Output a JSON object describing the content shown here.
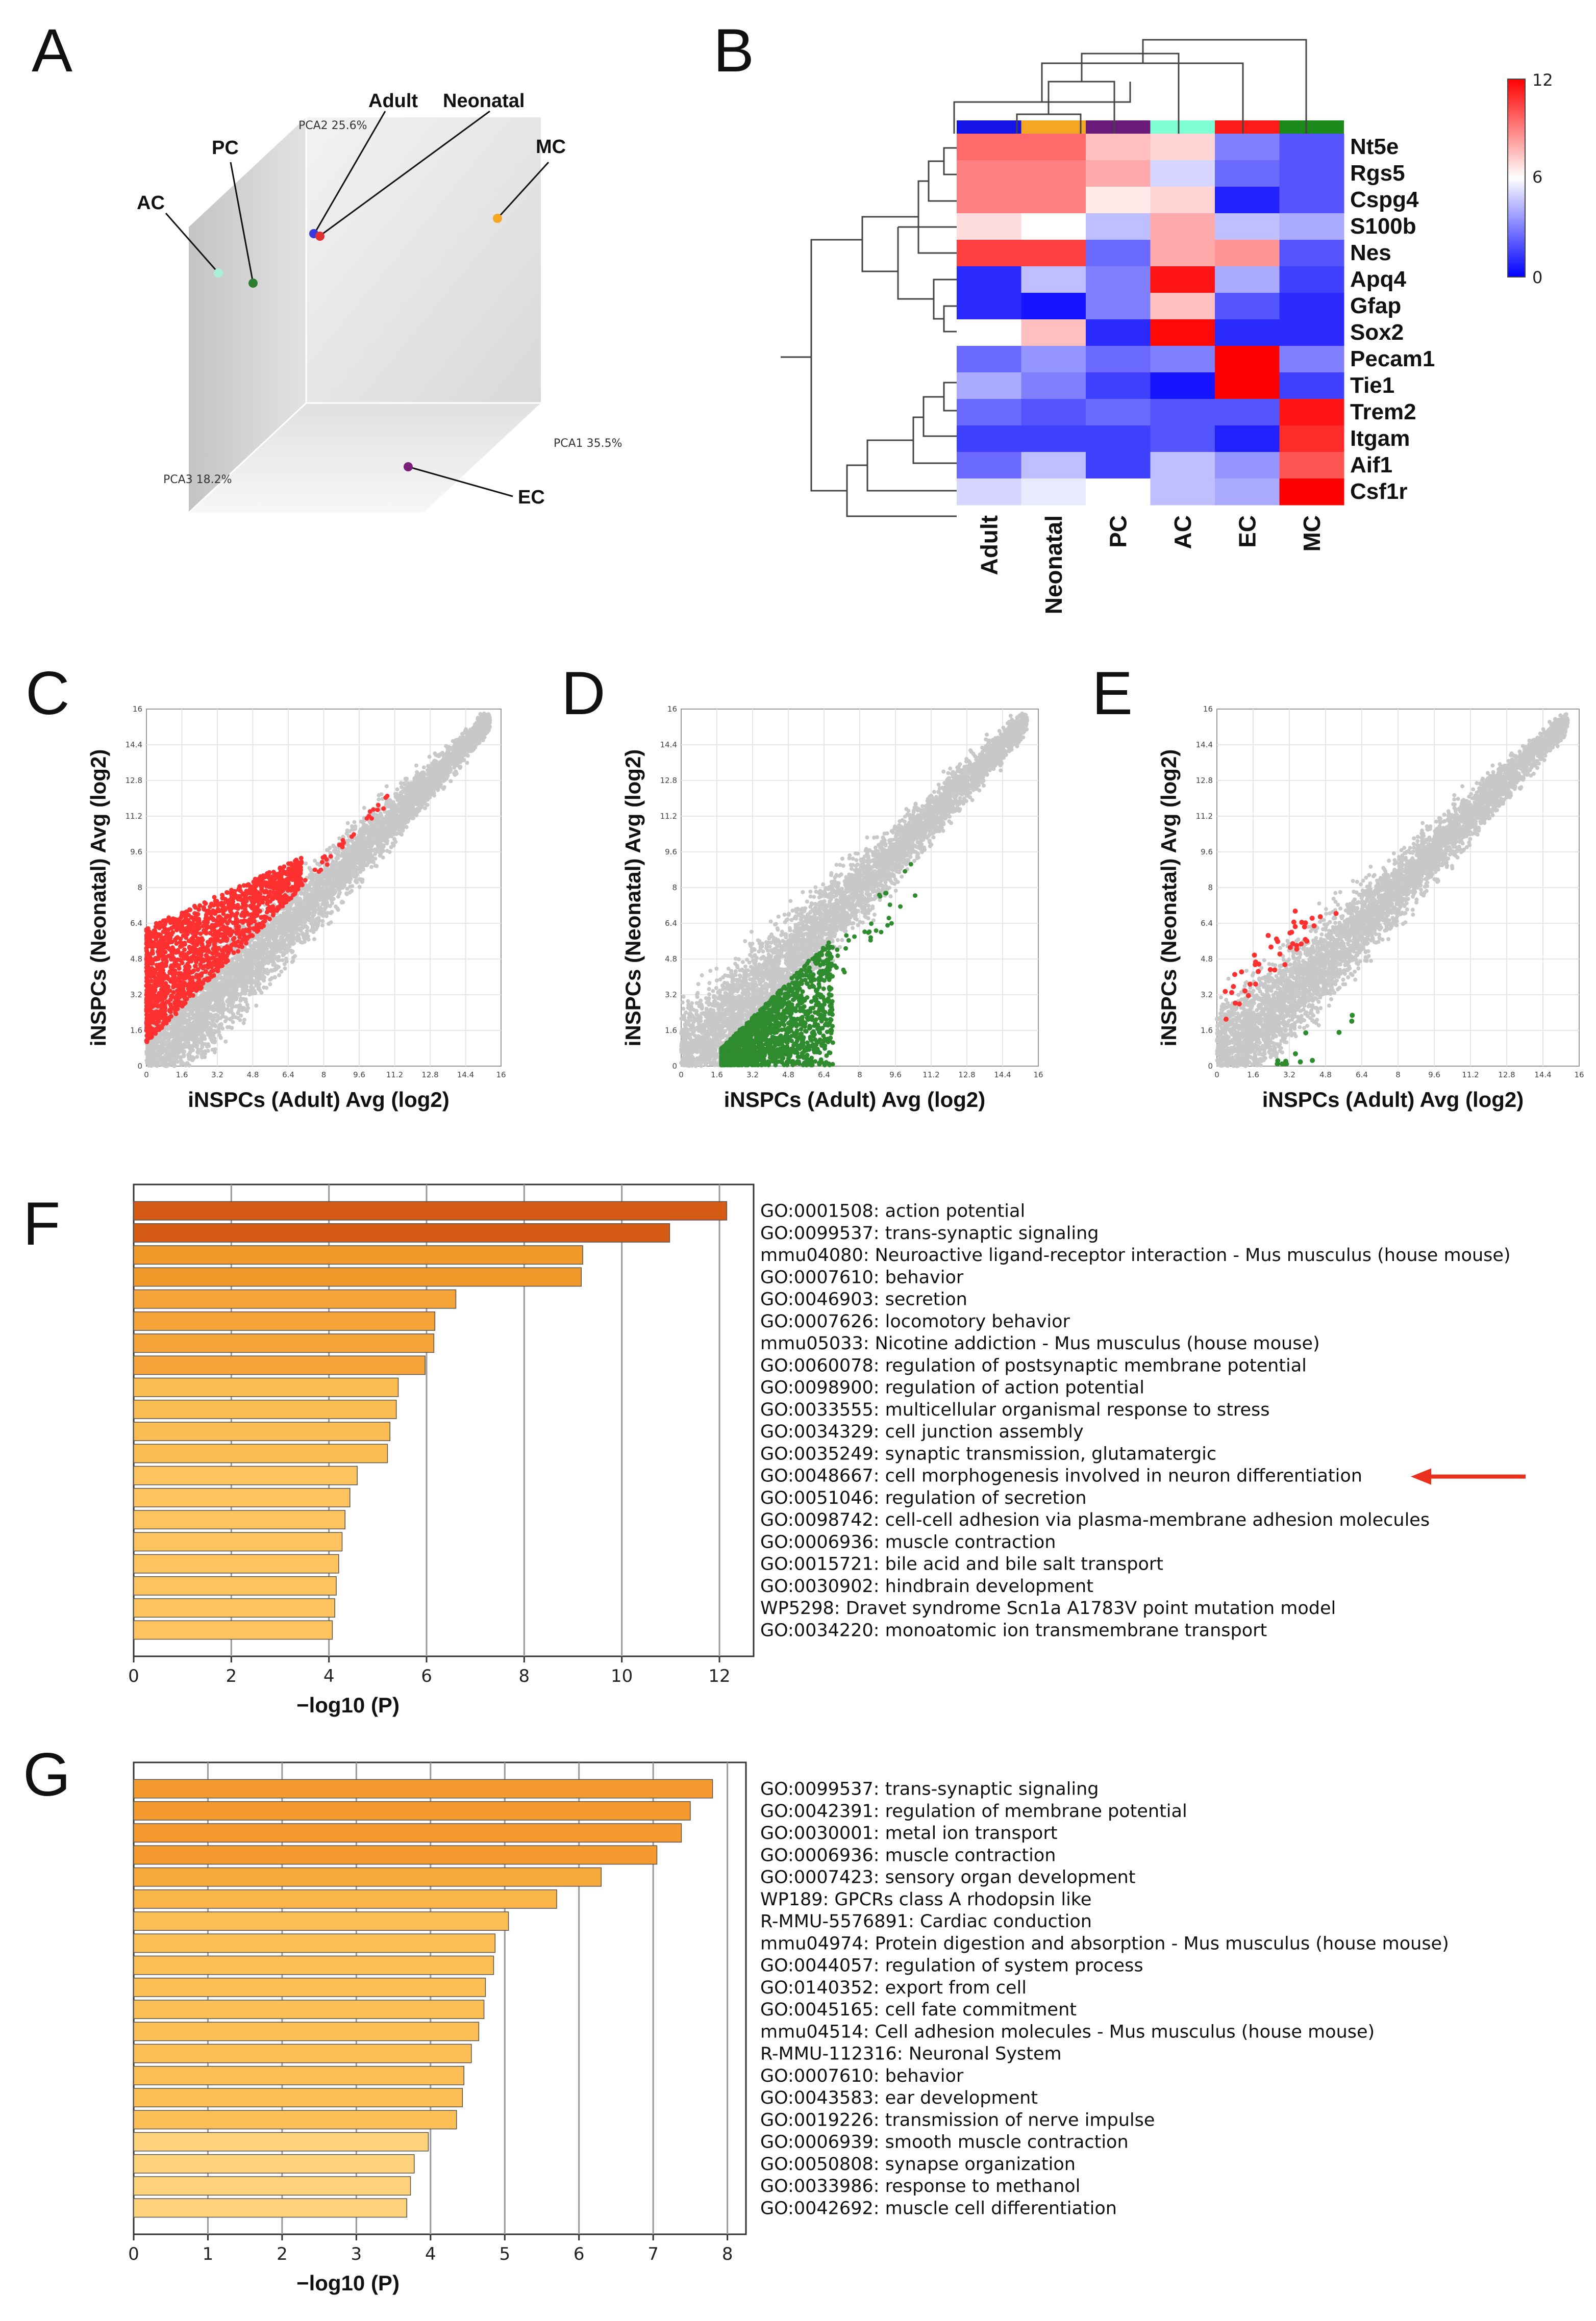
{
  "panels": {
    "A": {
      "letter": "A",
      "axes": {
        "pca1": "PCA1 35.5%",
        "pca2": "PCA2 25.6%",
        "pca3": "PCA3 18.2%"
      },
      "points": [
        {
          "label": "Adult",
          "color": "#3a3ae0"
        },
        {
          "label": "Neonatal",
          "color": "#e03030"
        },
        {
          "label": "MC",
          "color": "#f5a623"
        },
        {
          "label": "PC",
          "color": "#2e7d32"
        },
        {
          "label": "AC",
          "color": "#a8f0d8"
        },
        {
          "label": "EC",
          "color": "#7b1f7a"
        }
      ]
    },
    "B": {
      "letter": "B",
      "columns": [
        "Adult",
        "Neonatal",
        "PC",
        "AC",
        "EC",
        "MC"
      ],
      "column_colors": [
        "#1414e6",
        "#f5a623",
        "#6a1b7a",
        "#7fffd4",
        "#ff1a1a",
        "#1b8a1b"
      ],
      "genes": [
        "Nt5e",
        "Rgs5",
        "Cspg4",
        "S100b",
        "Nes",
        "Apq4",
        "Gfap",
        "Sox2",
        "Pecam1",
        "Tie1",
        "Trem2",
        "Itgam",
        "Aif1",
        "Csf1r"
      ],
      "scale": {
        "min": 0,
        "mid": 6,
        "max": 12,
        "labels": [
          "12",
          "6",
          "0"
        ]
      },
      "values": [
        [
          9.5,
          9.5,
          7.5,
          7,
          3,
          2
        ],
        [
          9,
          9,
          8,
          5,
          2.5,
          2
        ],
        [
          9,
          9,
          6.5,
          7,
          0.8,
          2
        ],
        [
          6.8,
          6,
          4.5,
          8,
          4.5,
          4
        ],
        [
          10.5,
          10.5,
          2.5,
          8,
          8.5,
          2
        ],
        [
          1,
          4.5,
          3,
          11.5,
          4,
          1.5
        ],
        [
          1,
          0.5,
          3,
          7.5,
          2,
          1
        ],
        [
          6,
          7.5,
          1,
          11.8,
          1,
          1
        ],
        [
          2.5,
          3.5,
          2.5,
          3,
          12,
          3
        ],
        [
          4,
          3,
          1.5,
          0.5,
          12,
          1.5
        ],
        [
          2.5,
          2,
          2.5,
          2,
          2,
          11.5
        ],
        [
          1.5,
          1.5,
          1.5,
          2,
          0.8,
          11
        ],
        [
          2.5,
          4.5,
          1.5,
          4.5,
          3.5,
          10
        ],
        [
          5,
          5.5,
          6,
          4.5,
          4,
          12
        ]
      ]
    },
    "C": {
      "letter": "C",
      "ylabel": "iNSPCs (Neonatal)  Avg (log2)",
      "xlabel": "iNSPCs  (Adult)  Avg (log2)",
      "highlight": "#ff3030",
      "mode": "up"
    },
    "D": {
      "letter": "D",
      "ylabel": "iNSPCs (Neonatal)  Avg (log2)",
      "xlabel": "iNSPCs  (Adult)  Avg (log2)",
      "highlight": "#2e8b2e",
      "mode": "down"
    },
    "E": {
      "letter": "E",
      "ylabel": "iNSPCs (Neonatal)  Avg (log2)",
      "xlabel": "iNSPCs  (Adult)  Avg (log2)",
      "highlight": "#ff3030",
      "highlight2": "#2e8b2e",
      "mode": "both"
    },
    "F": {
      "letter": "F",
      "xlabel": "−log10 (P)",
      "arrow_color": "#e8301c"
    },
    "G": {
      "letter": "G",
      "xlabel": "−log10 (P)"
    }
  },
  "scatter_ticks": [
    "0",
    "1.6",
    "3.2",
    "4.8",
    "6.4",
    "8",
    "9.6",
    "11.2",
    "12.8",
    "14.4",
    "16"
  ],
  "chart_data": [
    {
      "type": "bar",
      "title": "",
      "xlabel": "−log10 (P)",
      "xlim": [
        0,
        12.7
      ],
      "ticks": [
        "0",
        "2",
        "4",
        "6",
        "8",
        "10",
        "12"
      ],
      "highlighted_term": "GO:0048667: cell morphogenesis involved in neuron differentiation",
      "categories": [
        "GO:0001508: action potential",
        "GO:0099537: trans-synaptic signaling",
        "mmu04080: Neuroactive ligand-receptor interaction - Mus musculus (house mouse)",
        "GO:0007610: behavior",
        "GO:0046903: secretion",
        "GO:0007626: locomotory behavior",
        "mmu05033: Nicotine addiction - Mus musculus (house mouse)",
        "GO:0060078: regulation of postsynaptic membrane potential",
        "GO:0098900: regulation of action potential",
        "GO:0033555: multicellular organismal response to stress",
        "GO:0034329: cell junction assembly",
        "GO:0035249: synaptic transmission, glutamatergic",
        "GO:0048667: cell morphogenesis involved in neuron differentiation",
        "GO:0051046: regulation of secretion",
        "GO:0098742: cell-cell adhesion via plasma-membrane adhesion molecules",
        "GO:0006936: muscle contraction",
        "GO:0015721: bile acid and bile salt transport",
        "GO:0030902: hindbrain development",
        "WP5298: Dravet syndrome Scn1a A1783V point mutation model",
        "GO:0034220: monoatomic ion transmembrane transport"
      ],
      "values": [
        12.15,
        10.98,
        9.2,
        9.17,
        6.6,
        6.17,
        6.15,
        5.97,
        5.42,
        5.38,
        5.25,
        5.2,
        4.58,
        4.43,
        4.33,
        4.27,
        4.2,
        4.15,
        4.12,
        4.07
      ],
      "colors": [
        "#d55a14",
        "#d55a14",
        "#f19a2b",
        "#f19a2b",
        "#f5a43a",
        "#f5a43a",
        "#f5a43a",
        "#f5a43a",
        "#fbbc52",
        "#fbbc52",
        "#fbbc52",
        "#fbbc52",
        "#fcc35e",
        "#fcc35e",
        "#fcc35e",
        "#fcc35e",
        "#fcc35e",
        "#fcc35e",
        "#fcc35e",
        "#fcc35e"
      ]
    },
    {
      "type": "bar",
      "title": "",
      "xlabel": "−log10 (P)",
      "xlim": [
        0,
        8.25
      ],
      "ticks": [
        "0",
        "1",
        "2",
        "3",
        "4",
        "5",
        "6",
        "7",
        "8"
      ],
      "categories": [
        "GO:0099537: trans-synaptic signaling",
        "GO:0042391: regulation of membrane potential",
        "GO:0030001: metal ion transport",
        "GO:0006936: muscle contraction",
        "GO:0007423: sensory organ development",
        "WP189: GPCRs class A rhodopsin like",
        "R-MMU-5576891: Cardiac conduction",
        "mmu04974: Protein digestion and absorption - Mus musculus (house mouse)",
        "GO:0044057: regulation of system process",
        "GO:0140352: export from cell",
        "GO:0045165: cell fate commitment",
        "mmu04514: Cell adhesion molecules - Mus musculus (house mouse)",
        "R-MMU-112316: Neuronal System",
        "GO:0007610: behavior",
        "GO:0043583: ear development",
        "GO:0019226: transmission of nerve impulse",
        "GO:0006939: smooth muscle contraction",
        "GO:0050808: synapse organization",
        "GO:0033986: response to methanol",
        "GO:0042692: muscle cell differentiation"
      ],
      "values": [
        7.8,
        7.5,
        7.38,
        7.05,
        6.3,
        5.7,
        5.05,
        4.87,
        4.85,
        4.74,
        4.72,
        4.65,
        4.55,
        4.45,
        4.43,
        4.35,
        3.97,
        3.78,
        3.73,
        3.68
      ],
      "colors": [
        "#f59a2e",
        "#f59a2e",
        "#f59a2e",
        "#f59a2e",
        "#f7a83a",
        "#f9b547",
        "#fbbf55",
        "#fbbf55",
        "#fbbf55",
        "#fbbf55",
        "#fbbf55",
        "#fbbf55",
        "#fbbf55",
        "#fbbf55",
        "#fbbf55",
        "#fbbf55",
        "#fdd27a",
        "#fdd27a",
        "#fdd27a",
        "#fdd27a"
      ]
    }
  ]
}
